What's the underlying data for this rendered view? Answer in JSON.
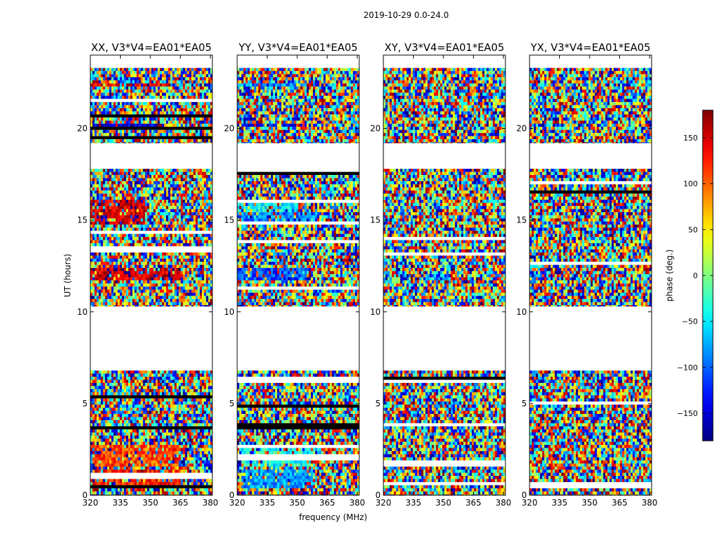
{
  "chart_data": {
    "type": "heatmap",
    "title": "2019-10-29 0.0-24.0",
    "xlabel": "frequency (MHz)",
    "ylabel": "UT (hours)",
    "xlim": [
      320,
      381
    ],
    "ylim": [
      0,
      24
    ],
    "x_ticks": [
      "320",
      "335",
      "350",
      "365",
      "380"
    ],
    "x_tick_values": [
      320,
      335,
      350,
      365,
      380
    ],
    "y_ticks": [
      "0",
      "5",
      "10",
      "15",
      "20"
    ],
    "y_tick_values": [
      0,
      5,
      10,
      15,
      20
    ],
    "colorbar": {
      "label": "phase (deg.)",
      "range": [
        -180,
        180
      ],
      "ticks": [
        "150",
        "100",
        "50",
        "0",
        "−50",
        "−100",
        "−150"
      ],
      "tick_values": [
        150,
        100,
        50,
        0,
        -50,
        -100,
        -150
      ],
      "colormap": "jet"
    },
    "data_time_ranges_hours": [
      [
        0.0,
        6.8
      ],
      [
        10.3,
        17.8
      ],
      [
        19.2,
        23.3
      ]
    ],
    "panels": [
      {
        "title": "XX, V3*V4=EA01*EA05",
        "coherent_bands": [
          {
            "t_start": 0.3,
            "t_end": 1.4,
            "phase_deg": 125,
            "freq_start": 322,
            "freq_end": 365
          },
          {
            "t_start": 1.6,
            "t_end": 2.8,
            "phase_deg": 110,
            "freq_start": 322,
            "freq_end": 365
          },
          {
            "t_start": 11.7,
            "t_end": 12.4,
            "phase_deg": 155,
            "freq_start": 320,
            "freq_end": 365
          },
          {
            "t_start": 14.7,
            "t_end": 15.4,
            "phase_deg": 150,
            "freq_start": 320,
            "freq_end": 347
          },
          {
            "t_start": 15.5,
            "t_end": 16.1,
            "phase_deg": 150,
            "freq_start": 320,
            "freq_end": 347
          },
          {
            "t_start": 20.1,
            "t_end": 20.3,
            "phase_deg": -150,
            "freq_start": 320,
            "freq_end": 358
          },
          {
            "t_start": 22.3,
            "t_end": 22.5,
            "phase_deg": 140,
            "freq_start": 320,
            "freq_end": 360
          }
        ]
      },
      {
        "title": "YY, V3*V4=EA01*EA05",
        "coherent_bands": [
          {
            "t_start": 0.3,
            "t_end": 1.4,
            "phase_deg": -80,
            "freq_start": 322,
            "freq_end": 358
          },
          {
            "t_start": 1.6,
            "t_end": 2.8,
            "phase_deg": -40,
            "freq_start": 322,
            "freq_end": 358
          },
          {
            "t_start": 11.7,
            "t_end": 12.4,
            "phase_deg": -110,
            "freq_start": 320,
            "freq_end": 355
          },
          {
            "t_start": 14.7,
            "t_end": 15.4,
            "phase_deg": -90,
            "freq_start": 320,
            "freq_end": 360
          },
          {
            "t_start": 15.5,
            "t_end": 16.1,
            "phase_deg": -50,
            "freq_start": 320,
            "freq_end": 350
          },
          {
            "t_start": 20.1,
            "t_end": 20.3,
            "phase_deg": -140,
            "freq_start": 320,
            "freq_end": 355
          },
          {
            "t_start": 22.3,
            "t_end": 22.5,
            "phase_deg": -90,
            "freq_start": 320,
            "freq_end": 355
          }
        ]
      },
      {
        "title": "XY, V3*V4=EA01*EA05",
        "coherent_bands": []
      },
      {
        "title": "YX, V3*V4=EA01*EA05",
        "coherent_bands": []
      }
    ]
  }
}
